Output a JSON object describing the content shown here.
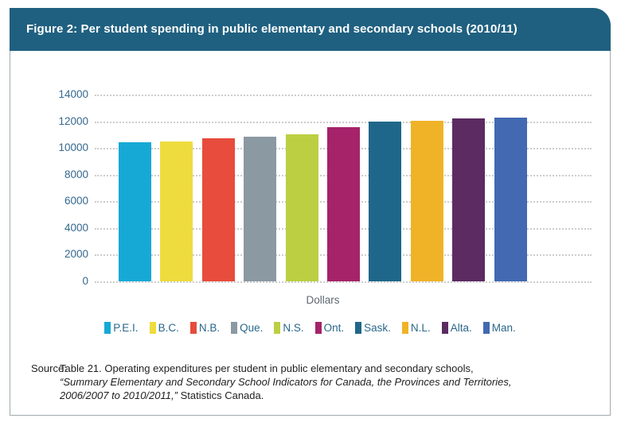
{
  "figure": {
    "title": "Figure 2: Per student spending in public elementary and secondary schools (2010/11)"
  },
  "chart_data": {
    "type": "bar",
    "categories": [
      "P.E.I.",
      "B.C.",
      "N.B.",
      "Que.",
      "N.S.",
      "Ont.",
      "Sask.",
      "N.L.",
      "Alta.",
      "Man."
    ],
    "values": [
      10450,
      10500,
      10750,
      10850,
      11050,
      11550,
      11990,
      12050,
      12200,
      12300
    ],
    "colors": [
      "#17a9d6",
      "#eedc3f",
      "#e74c3c",
      "#8b99a3",
      "#bccf43",
      "#a62369",
      "#1f678a",
      "#f0b327",
      "#5b2b62",
      "#4269b2"
    ],
    "title": "Figure 2: Per student spending in public elementary and secondary schools (2010/11)",
    "xlabel": "Dollars",
    "ylabel": "",
    "ylim": [
      0,
      14000
    ],
    "yticks": [
      0,
      2000,
      4000,
      6000,
      8000,
      10000,
      12000,
      14000
    ],
    "grid": "horizontal dotted",
    "legend_position": "bottom"
  },
  "source": {
    "label": "Source:",
    "line1": "Table 21. Operating expenditures per student in public elementary and secondary schools,",
    "line2_italic": "“Summary Elementary and Secondary School Indicators for Canada, the Provinces and Territories,",
    "line3_italic": "2006/2007 to 2010/2011,”",
    "line3_regular": "Statistics Canada."
  },
  "colors": {
    "header_bg": "#1f6080",
    "axis_label": "#35688e",
    "legend_text": "#29678b",
    "gridline": "#cdcdcd",
    "xlabel_text": "#5f6a72",
    "card_border": "#a3a9ad"
  }
}
